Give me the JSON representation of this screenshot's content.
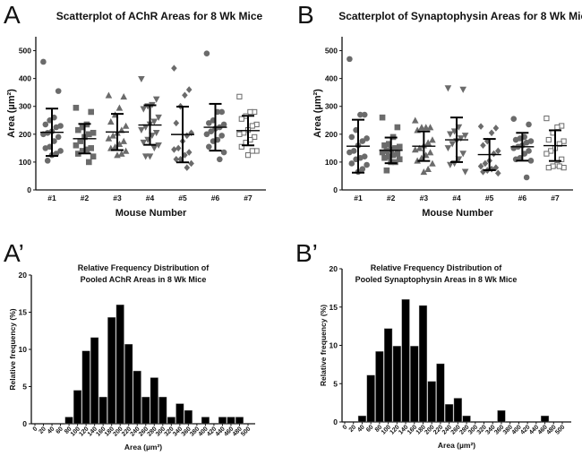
{
  "panels": {
    "a": "A",
    "b": "B",
    "a2": "A’",
    "b2": "B’"
  },
  "colors": {
    "marker": "#6b6b6b",
    "bar": "#000000",
    "axis": "#111111"
  },
  "chart_data": [
    {
      "type": "scatter",
      "title": "Scatterplot of AChR Areas for 8 Wk Mice",
      "xlabel": "Mouse Number",
      "ylabel": "Area (µm²)",
      "ylim": [
        0,
        550
      ],
      "yticks": [
        0,
        100,
        200,
        300,
        400,
        500
      ],
      "categories": [
        "#1",
        "#2",
        "#3",
        "#4",
        "#5",
        "#6",
        "#7"
      ],
      "markers": [
        "circle",
        "square",
        "triangle-up",
        "triangle-down",
        "diamond",
        "circle",
        "open-square"
      ],
      "series": [
        {
          "name": "#1",
          "values": [
            460,
            355,
            260,
            250,
            235,
            230,
            225,
            210,
            205,
            200,
            190,
            175,
            155,
            150,
            140,
            130,
            125,
            105
          ],
          "mean": 207,
          "sd": 85
        },
        {
          "name": "#2",
          "values": [
            295,
            280,
            235,
            225,
            215,
            205,
            200,
            190,
            175,
            160,
            150,
            145,
            140,
            130,
            120,
            100
          ],
          "mean": 184,
          "sd": 53
        },
        {
          "name": "#3",
          "values": [
            340,
            335,
            295,
            270,
            245,
            230,
            215,
            205,
            195,
            185,
            175,
            165,
            155,
            150,
            140,
            130,
            125
          ],
          "mean": 208,
          "sd": 65
        },
        {
          "name": "#4",
          "values": [
            398,
            325,
            305,
            300,
            290,
            260,
            245,
            235,
            225,
            215,
            205,
            195,
            180,
            170,
            160,
            150,
            120,
            120
          ],
          "mean": 233,
          "sd": 71
        },
        {
          "name": "#5",
          "values": [
            437,
            360,
            340,
            300,
            240,
            205,
            195,
            175,
            150,
            145,
            135,
            125,
            110,
            110,
            95,
            80
          ],
          "mean": 199,
          "sd": 100
        },
        {
          "name": "#6",
          "values": [
            490,
            280,
            280,
            250,
            240,
            235,
            225,
            220,
            210,
            200,
            195,
            180,
            175,
            155,
            135,
            110
          ],
          "mean": 225,
          "sd": 84
        },
        {
          "name": "#7",
          "values": [
            335,
            280,
            280,
            265,
            255,
            235,
            230,
            215,
            205,
            200,
            190,
            180,
            170,
            155,
            140,
            140,
            125
          ],
          "mean": 213,
          "sd": 53
        }
      ]
    },
    {
      "type": "scatter",
      "title": "Scatterplot of Synaptophysin Areas for 8 Wk Mice",
      "xlabel": "Mouse Number",
      "ylabel": "Area (µm²)",
      "ylim": [
        0,
        550
      ],
      "yticks": [
        0,
        100,
        200,
        300,
        400,
        500
      ],
      "categories": [
        "#1",
        "#2",
        "#3",
        "#4",
        "#5",
        "#6",
        "#7"
      ],
      "markers": [
        "circle",
        "square",
        "triangle-up",
        "triangle-down",
        "diamond",
        "circle",
        "open-square"
      ],
      "series": [
        {
          "name": "#1",
          "values": [
            470,
            270,
            270,
            215,
            190,
            185,
            175,
            160,
            140,
            135,
            120,
            115,
            110,
            95,
            90,
            75,
            65
          ],
          "mean": 157,
          "sd": 95
        },
        {
          "name": "#2",
          "values": [
            260,
            225,
            190,
            165,
            160,
            155,
            150,
            145,
            140,
            135,
            130,
            125,
            120,
            115,
            110,
            100,
            100,
            70
          ],
          "mean": 142,
          "sd": 46
        },
        {
          "name": "#3",
          "values": [
            250,
            225,
            225,
            225,
            215,
            180,
            170,
            160,
            150,
            145,
            135,
            125,
            115,
            105,
            95,
            75,
            65
          ],
          "mean": 157,
          "sd": 53
        },
        {
          "name": "#4",
          "values": [
            365,
            360,
            225,
            210,
            200,
            195,
            185,
            175,
            165,
            150,
            130,
            110,
            95,
            90,
            65
          ],
          "mean": 180,
          "sd": 80
        },
        {
          "name": "#5",
          "values": [
            228,
            222,
            205,
            175,
            160,
            140,
            130,
            105,
            95,
            85,
            80,
            75,
            70,
            65,
            60
          ],
          "mean": 127,
          "sd": 56
        },
        {
          "name": "#6",
          "values": [
            255,
            235,
            190,
            185,
            180,
            175,
            170,
            160,
            155,
            150,
            140,
            130,
            115,
            110,
            105,
            45
          ],
          "mean": 155,
          "sd": 50
        },
        {
          "name": "#7",
          "values": [
            257,
            230,
            225,
            205,
            180,
            175,
            165,
            150,
            140,
            130,
            110,
            90,
            85,
            80,
            80,
            85
          ],
          "mean": 159,
          "sd": 55
        }
      ]
    },
    {
      "type": "bar",
      "title": [
        "Relative Frequency Distribution of",
        "Pooled AChR Areas in 8 Wk Mice"
      ],
      "xlabel": "Area (µm²)",
      "ylabel": "Relative frequency (%)",
      "ylim": [
        0,
        20
      ],
      "yticks": [
        0,
        5,
        10,
        15,
        20
      ],
      "categories": [
        "0",
        "20",
        "40",
        "60",
        "80",
        "100",
        "120",
        "140",
        "160",
        "180",
        "200",
        "220",
        "240",
        "260",
        "280",
        "300",
        "320",
        "340",
        "360",
        "380",
        "400",
        "420",
        "440",
        "460",
        "480",
        "500"
      ],
      "values": [
        0,
        0,
        0,
        0,
        0.9,
        4.5,
        9.8,
        11.6,
        3.6,
        14.3,
        16,
        10.7,
        7.1,
        3.6,
        6.2,
        3.6,
        0.9,
        2.7,
        1.8,
        0,
        0.9,
        0,
        0.9,
        0.9,
        0.9,
        0
      ]
    },
    {
      "type": "bar",
      "title": [
        "Relative Frequency Distribution of",
        "Pooled Synaptophysin Areas in 8 Wk Mice"
      ],
      "xlabel": "Area (µm²)",
      "ylabel": "Relative frequency (%)",
      "ylim": [
        0,
        20
      ],
      "yticks": [
        0,
        5,
        10,
        15,
        20
      ],
      "categories": [
        "0",
        "20",
        "40",
        "60",
        "80",
        "100",
        "120",
        "140",
        "160",
        "180",
        "200",
        "220",
        "240",
        "260",
        "280",
        "300",
        "320",
        "340",
        "360",
        "380",
        "400",
        "420",
        "440",
        "460",
        "480",
        "500"
      ],
      "values": [
        0,
        0,
        0.8,
        6.1,
        9.2,
        12.2,
        9.9,
        16,
        9.9,
        15.2,
        5.3,
        7.6,
        2.3,
        3.1,
        0.8,
        0,
        0,
        0,
        1.5,
        0,
        0,
        0,
        0,
        0.8,
        0,
        0
      ]
    }
  ]
}
